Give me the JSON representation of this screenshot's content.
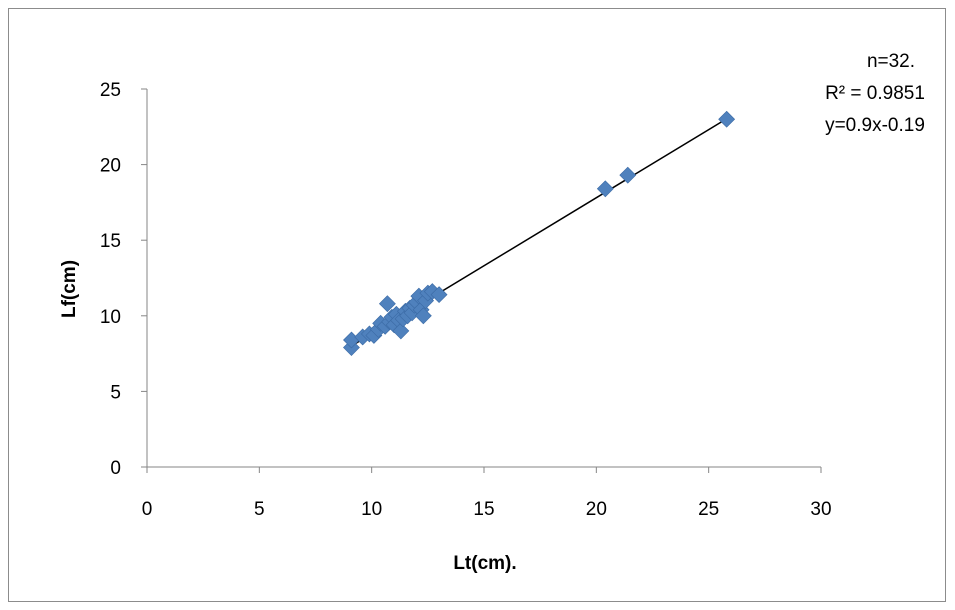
{
  "chart_data": {
    "type": "scatter",
    "xlabel": "Lt(cm).",
    "ylabel": "Lf(cm)",
    "xlim": [
      0,
      30
    ],
    "ylim": [
      0,
      25
    ],
    "xticks": [
      0,
      5,
      10,
      15,
      20,
      25,
      30
    ],
    "yticks": [
      0,
      5,
      10,
      15,
      20,
      25
    ],
    "grid": false,
    "marker": "diamond",
    "marker_color": "#4f81bd",
    "annotations": [
      "n=32.",
      "R² = 0.9851",
      "y=0.9x-0.19"
    ],
    "trendline": {
      "slope": 0.9,
      "intercept": -0.19,
      "x_range": [
        9.1,
        25.8
      ]
    },
    "points": [
      {
        "x": 9.1,
        "y": 7.9
      },
      {
        "x": 9.1,
        "y": 8.4
      },
      {
        "x": 9.6,
        "y": 8.6
      },
      {
        "x": 9.9,
        "y": 8.8
      },
      {
        "x": 10.1,
        "y": 8.7
      },
      {
        "x": 10.3,
        "y": 9.1
      },
      {
        "x": 10.4,
        "y": 9.5
      },
      {
        "x": 10.6,
        "y": 9.3
      },
      {
        "x": 10.7,
        "y": 10.8
      },
      {
        "x": 10.8,
        "y": 9.6
      },
      {
        "x": 10.9,
        "y": 9.9
      },
      {
        "x": 11.0,
        "y": 9.4
      },
      {
        "x": 11.1,
        "y": 10.1
      },
      {
        "x": 11.2,
        "y": 9.7
      },
      {
        "x": 11.3,
        "y": 9.0
      },
      {
        "x": 11.4,
        "y": 9.8
      },
      {
        "x": 11.5,
        "y": 10.3
      },
      {
        "x": 11.6,
        "y": 10.0
      },
      {
        "x": 11.7,
        "y": 10.5
      },
      {
        "x": 11.8,
        "y": 10.2
      },
      {
        "x": 11.9,
        "y": 10.7
      },
      {
        "x": 12.0,
        "y": 10.9
      },
      {
        "x": 12.1,
        "y": 11.3
      },
      {
        "x": 12.2,
        "y": 10.4
      },
      {
        "x": 12.3,
        "y": 10.0
      },
      {
        "x": 12.4,
        "y": 11.0
      },
      {
        "x": 12.5,
        "y": 11.5
      },
      {
        "x": 12.7,
        "y": 11.6
      },
      {
        "x": 13.0,
        "y": 11.4
      },
      {
        "x": 20.4,
        "y": 18.4
      },
      {
        "x": 21.4,
        "y": 19.3
      },
      {
        "x": 25.8,
        "y": 23.0
      }
    ]
  }
}
